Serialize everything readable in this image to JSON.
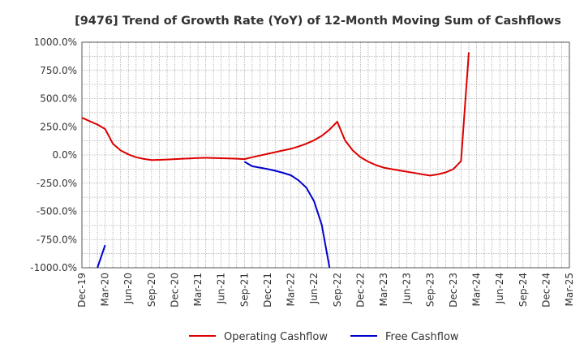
{
  "chart_data": {
    "type": "line",
    "title": "[9476]  Trend of Growth Rate (YoY) of 12-Month Moving Sum of Cashflows",
    "xlabel": "",
    "ylabel": "",
    "x_tick_labels": [
      "Dec-19",
      "Mar-20",
      "Jun-20",
      "Sep-20",
      "Dec-20",
      "Mar-21",
      "Jun-21",
      "Sep-21",
      "Dec-21",
      "Mar-22",
      "Jun-22",
      "Sep-22",
      "Dec-22",
      "Mar-23",
      "Jun-23",
      "Sep-23",
      "Dec-23",
      "Mar-24",
      "Jun-24",
      "Sep-24",
      "Dec-24",
      "Mar-25"
    ],
    "y_tick_labels": [
      "1000.0%",
      "750.0%",
      "500.0%",
      "250.0%",
      "0.0%",
      "-250.0%",
      "-500.0%",
      "-750.0%",
      "-1000.0%"
    ],
    "ylim": [
      -1000,
      1000
    ],
    "grid": true,
    "legend_position": "bottom",
    "series": [
      {
        "name": "Operating Cashflow",
        "color": "#dd0000",
        "points": [
          [
            "Dec-19",
            330
          ],
          [
            "Jan-20",
            300
          ],
          [
            "Feb-20",
            270
          ],
          [
            "Mar-20",
            230
          ],
          [
            "Apr-20",
            100
          ],
          [
            "May-20",
            40
          ],
          [
            "Jun-20",
            5
          ],
          [
            "Jul-20",
            -20
          ],
          [
            "Aug-20",
            -35
          ],
          [
            "Sep-20",
            -45
          ],
          [
            "Oct-20",
            -43
          ],
          [
            "Nov-20",
            -40
          ],
          [
            "Dec-20",
            -37
          ],
          [
            "Jan-21",
            -33
          ],
          [
            "Feb-21",
            -30
          ],
          [
            "Mar-21",
            -27
          ],
          [
            "Apr-21",
            -25
          ],
          [
            "May-21",
            -27
          ],
          [
            "Jun-21",
            -29
          ],
          [
            "Jul-21",
            -31
          ],
          [
            "Aug-21",
            -33
          ],
          [
            "Sep-21",
            -37
          ],
          [
            "Oct-21",
            -20
          ],
          [
            "Nov-21",
            -5
          ],
          [
            "Dec-21",
            10
          ],
          [
            "Jan-22",
            25
          ],
          [
            "Feb-22",
            40
          ],
          [
            "Mar-22",
            55
          ],
          [
            "Apr-22",
            75
          ],
          [
            "May-22",
            100
          ],
          [
            "Jun-22",
            130
          ],
          [
            "Jul-22",
            170
          ],
          [
            "Aug-22",
            225
          ],
          [
            "Sep-22",
            295
          ],
          [
            "Oct-22",
            130
          ],
          [
            "Nov-22",
            40
          ],
          [
            "Dec-22",
            -20
          ],
          [
            "Jan-23",
            -60
          ],
          [
            "Feb-23",
            -90
          ],
          [
            "Mar-23",
            -112
          ],
          [
            "Apr-23",
            -125
          ],
          [
            "May-23",
            -137
          ],
          [
            "Jun-23",
            -148
          ],
          [
            "Jul-23",
            -160
          ],
          [
            "Aug-23",
            -172
          ],
          [
            "Sep-23",
            -183
          ],
          [
            "Oct-23",
            -172
          ],
          [
            "Nov-23",
            -155
          ],
          [
            "Dec-23",
            -125
          ],
          [
            "Jan-24",
            -55
          ],
          [
            "Feb-24",
            910
          ]
        ]
      },
      {
        "name": "Free Cashflow",
        "color": "#0000cc",
        "segments": [
          [
            [
              "Feb-20",
              -1000
            ],
            [
              "Mar-20",
              -800
            ]
          ],
          [
            [
              "Sep-21",
              -60
            ],
            [
              "Oct-21",
              -100
            ],
            [
              "Nov-21",
              -112
            ],
            [
              "Dec-21",
              -125
            ],
            [
              "Jan-22",
              -140
            ],
            [
              "Feb-22",
              -158
            ],
            [
              "Mar-22",
              -180
            ],
            [
              "Apr-22",
              -225
            ],
            [
              "May-22",
              -290
            ],
            [
              "Jun-22",
              -410
            ],
            [
              "Jul-22",
              -620
            ],
            [
              "Aug-22",
              -1000
            ]
          ]
        ]
      }
    ]
  }
}
